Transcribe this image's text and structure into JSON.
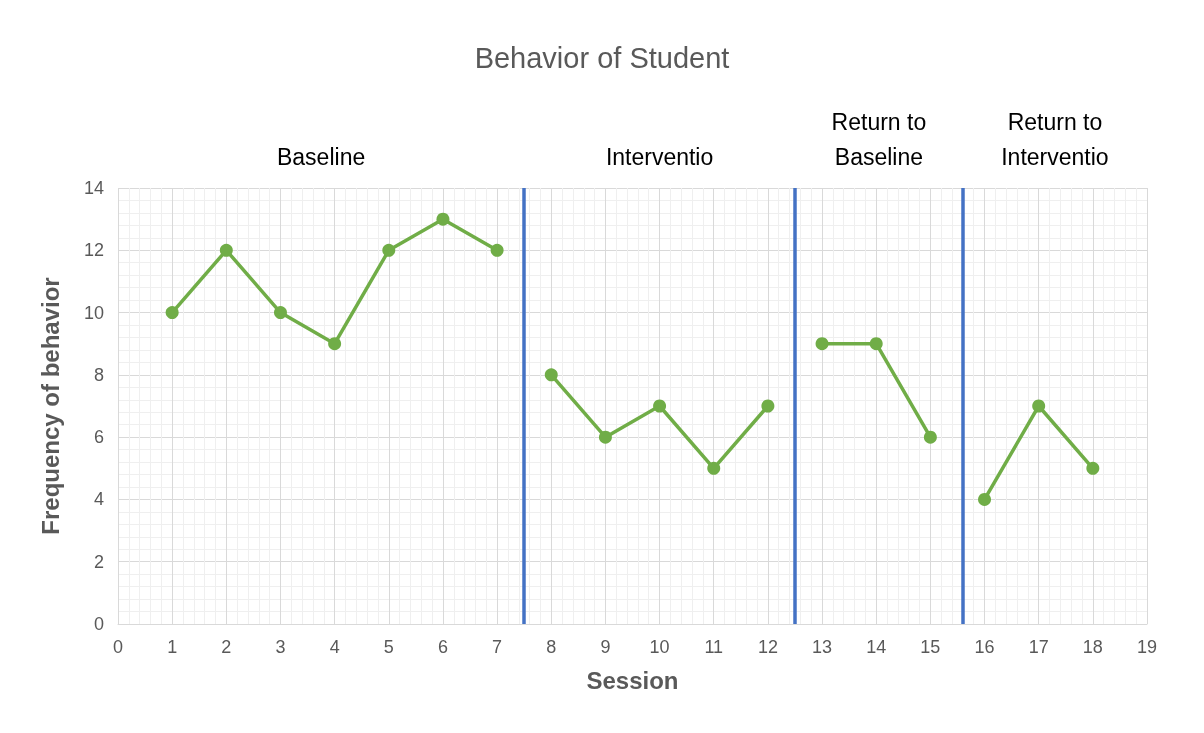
{
  "chart_data": {
    "type": "line",
    "title": "Behavior of Student",
    "xlabel": "Session",
    "ylabel": "Frequency of behavior",
    "series": [
      {
        "color": "#70ad47",
        "x": [
          1,
          2,
          3,
          4,
          5,
          6,
          7
        ],
        "values": [
          10,
          12,
          10,
          9,
          12,
          13,
          12
        ]
      },
      {
        "color": "#70ad47",
        "x": [
          8,
          9,
          10,
          11,
          12
        ],
        "values": [
          8,
          6,
          7,
          5,
          7
        ]
      },
      {
        "color": "#70ad47",
        "x": [
          13,
          14,
          15
        ],
        "values": [
          9,
          9,
          6
        ]
      },
      {
        "color": "#70ad47",
        "x": [
          16,
          17,
          18
        ],
        "values": [
          4,
          7,
          5
        ]
      }
    ],
    "xlim": [
      0,
      19
    ],
    "xticks": [
      0,
      1,
      2,
      3,
      4,
      5,
      6,
      7,
      8,
      9,
      10,
      11,
      12,
      13,
      14,
      15,
      16,
      17,
      18,
      19
    ],
    "ylim": [
      0,
      14
    ],
    "yticks": [
      0,
      2,
      4,
      6,
      8,
      10,
      12,
      14
    ],
    "ref_lines": [
      {
        "axis": "x",
        "value": 7.5,
        "color": "#4472c4"
      },
      {
        "axis": "x",
        "value": 12.5,
        "color": "#4472c4"
      },
      {
        "axis": "x",
        "value": 15.6,
        "color": "#4472c4"
      }
    ],
    "annotations": [
      "Baseline",
      "Interventio",
      "Return to\nBaseline",
      "Return to\nInterventio"
    ],
    "grid": true,
    "marker": "circle",
    "line_style": "solid"
  }
}
